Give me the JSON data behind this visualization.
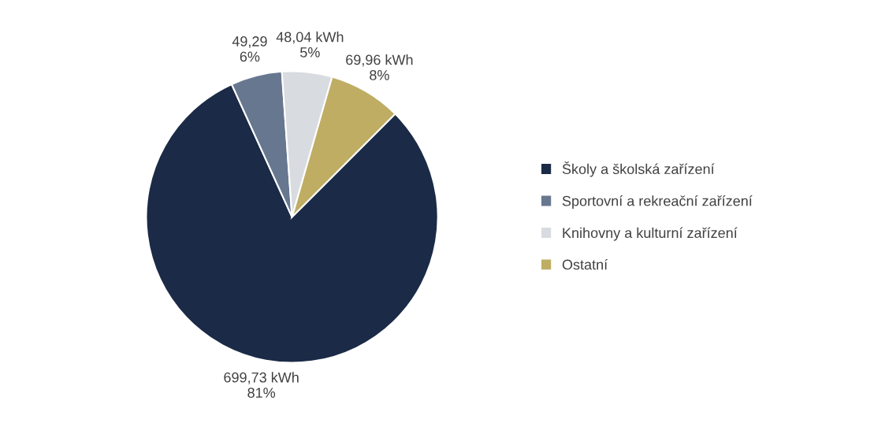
{
  "chart_data": {
    "type": "pie",
    "categories": [
      "Školy a školská zařízení",
      "Sportovní a rekreační zařízení",
      "Knihovny a kulturní zařízení",
      "Ostatní"
    ],
    "values": [
      699.73,
      49.29,
      48.04,
      69.96
    ],
    "value_labels": [
      "699,73 kWh\n81%",
      "49,29\n6%",
      "48,04 kWh\n5%",
      "69,96 kWh\n8%"
    ],
    "colors": [
      "#1b2a46",
      "#67778f",
      "#d8dbe0",
      "#bead63"
    ],
    "legend": "right"
  }
}
